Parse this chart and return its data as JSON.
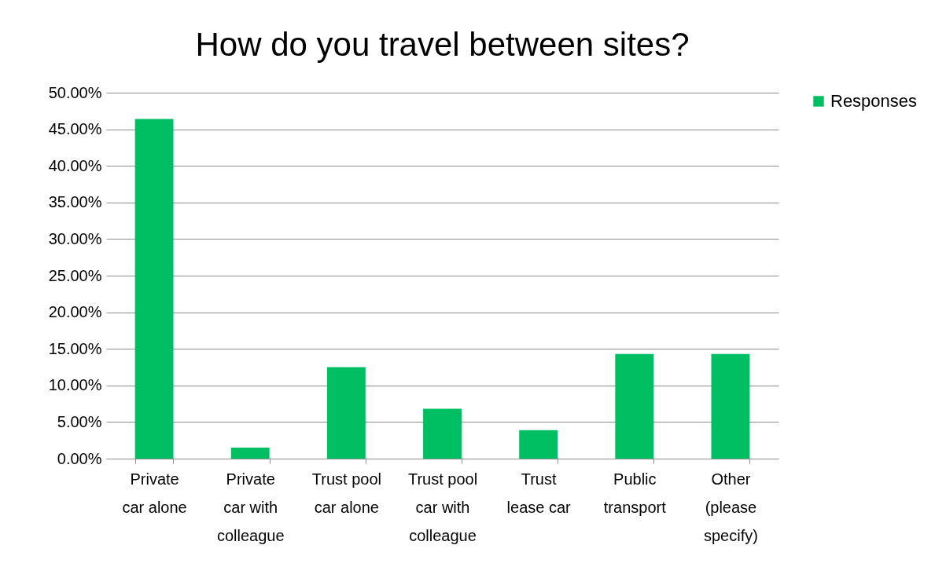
{
  "chart_data": {
    "type": "bar",
    "title": "How do you travel between sites?",
    "categories": [
      "Private car alone",
      "Private car with colleague",
      "Trust pool car alone",
      "Trust pool car with colleague",
      "Trust lease car",
      "Public transport",
      "Other (please specify)"
    ],
    "series": [
      {
        "name": "Responses",
        "color": "#00bf63",
        "values": [
          46.4,
          1.5,
          12.5,
          6.8,
          3.9,
          14.3,
          14.3
        ]
      }
    ],
    "ylim": [
      0,
      50
    ],
    "yticks": [
      {
        "value": 0,
        "label": "0.00%"
      },
      {
        "value": 5,
        "label": "5.00%"
      },
      {
        "value": 10,
        "label": "10.00%"
      },
      {
        "value": 15,
        "label": "15.00%"
      },
      {
        "value": 20,
        "label": "20.00%"
      },
      {
        "value": 25,
        "label": "25.00%"
      },
      {
        "value": 30,
        "label": "30.00%"
      },
      {
        "value": 35,
        "label": "35.00%"
      },
      {
        "value": 40,
        "label": "40.00%"
      },
      {
        "value": 45,
        "label": "45.00%"
      },
      {
        "value": 50,
        "label": "50.00%"
      }
    ],
    "grid": "y",
    "legend": "right"
  }
}
